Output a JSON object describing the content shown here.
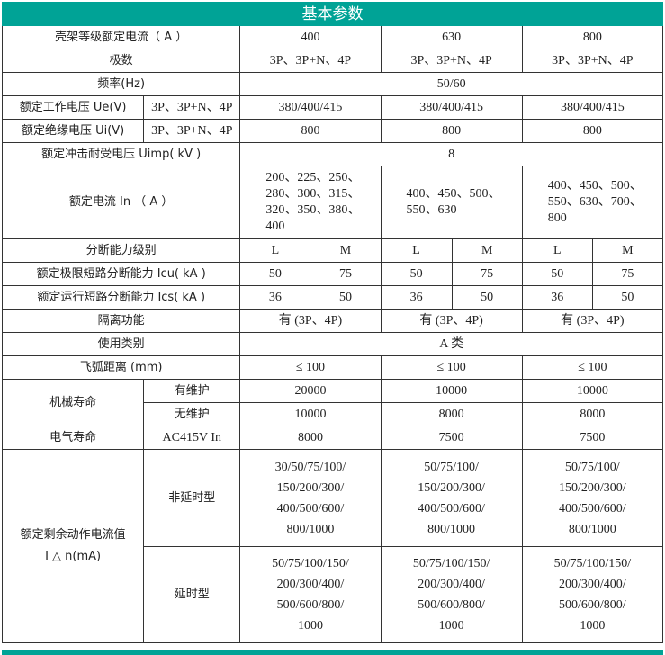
{
  "title": "基本参数",
  "frame_current": {
    "label": "壳架等级额定电流（ A ）",
    "values": [
      "400",
      "630",
      "800"
    ]
  },
  "poles": {
    "label": "极数",
    "values": [
      "3P、3P+N、4P",
      "3P、3P+N、4P",
      "3P、3P+N、4P"
    ]
  },
  "frequency": {
    "label": "频率(Hz)",
    "value": "50/60"
  },
  "ue": {
    "label": "额定工作电压 Ue(V)",
    "sub": "3P、3P+N、4P",
    "values": [
      "380/400/415",
      "380/400/415",
      "380/400/415"
    ]
  },
  "ui": {
    "label": "额定绝缘电压 Ui(V)",
    "sub": "3P、3P+N、4P",
    "values": [
      "800",
      "800",
      "800"
    ]
  },
  "uimp": {
    "label": "额定冲击耐受电压 Uimp( kV )",
    "value": "8"
  },
  "in": {
    "label": "额定电流 In （ A ）",
    "values": [
      "200、225、250、280、300、315、320、350、380、400",
      "400、450、500、550、630",
      "400、450、500、550、630、700、800"
    ]
  },
  "breaking_level": {
    "label": "分断能力级别",
    "values": [
      "L",
      "M",
      "L",
      "M",
      "L",
      "M"
    ]
  },
  "icu": {
    "label": "额定极限短路分断能力 Icu( kA )",
    "values": [
      "50",
      "75",
      "50",
      "75",
      "50",
      "75"
    ]
  },
  "ics": {
    "label": "额定运行短路分断能力 Ics( kA )",
    "values": [
      "36",
      "50",
      "36",
      "50",
      "36",
      "50"
    ]
  },
  "isolation": {
    "label": "隔离功能",
    "values": [
      "有 (3P、4P)",
      "有 (3P、4P)",
      "有 (3P、4P)"
    ]
  },
  "category": {
    "label": "使用类别",
    "value": "A 类"
  },
  "arc": {
    "label": "飞弧距离 (mm)",
    "values": [
      "≤ 100",
      "≤ 100",
      "≤ 100"
    ]
  },
  "mech_life": {
    "label": "机械寿命",
    "maintained": {
      "label": "有维护",
      "values": [
        "20000",
        "10000",
        "10000"
      ]
    },
    "unmaintained": {
      "label": "无维护",
      "values": [
        "10000",
        "8000",
        "8000"
      ]
    }
  },
  "elec_life": {
    "label": "电气寿命",
    "sub": "AC415V  In",
    "values": [
      "8000",
      "7500",
      "7500"
    ]
  },
  "residual": {
    "label_line1": "额定剩余动作电流值",
    "label_line2": "I △ n(mA)",
    "non_delay": {
      "label": "非延时型",
      "values": [
        [
          "30/50/75/100/",
          "150/200/300/",
          "400/500/600/",
          "800/1000"
        ],
        [
          "50/75/100/",
          "150/200/300/",
          "400/500/600/",
          "800/1000"
        ],
        [
          "50/75/100/",
          "150/200/300/",
          "400/500/600/",
          "800/1000"
        ]
      ]
    },
    "delay": {
      "label": "延时型",
      "values": [
        [
          "50/75/100/150/",
          "200/300/400/",
          "500/600/800/",
          "1000"
        ],
        [
          "50/75/100/150/",
          "200/300/400/",
          "500/600/800/",
          "1000"
        ],
        [
          "50/75/100/150/",
          "200/300/400/",
          "500/600/800/",
          "1000"
        ]
      ]
    }
  },
  "colors": {
    "header": "#00a396"
  }
}
